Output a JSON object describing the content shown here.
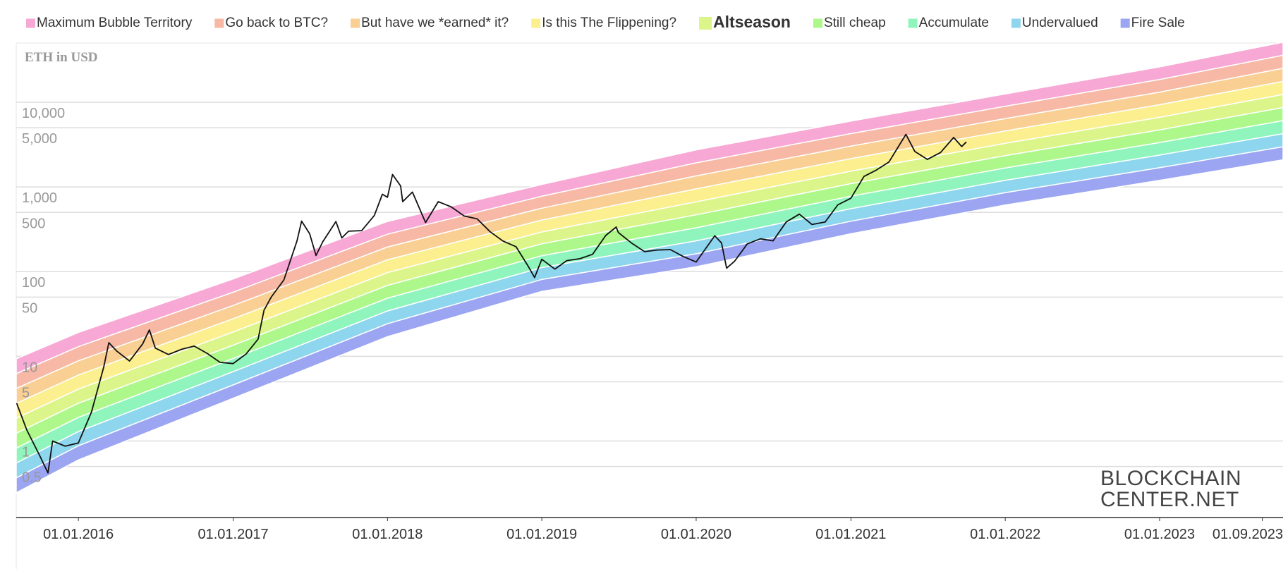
{
  "chart_data": {
    "type": "line",
    "title": "ETH in USD",
    "watermark": [
      "BLOCKCHAIN",
      "CENTER.NET"
    ],
    "log_scale": true,
    "grid": true,
    "legend_position": "top",
    "legend_highlight": 4,
    "ylim": [
      0.125,
      50000
    ],
    "yticks": [
      0.5,
      1,
      5,
      10,
      50,
      100,
      500,
      {
        "value": 1000,
        "label": "1,000"
      },
      {
        "value": 5000,
        "label": "5,000"
      },
      {
        "value": 10000,
        "label": "10,000"
      }
    ],
    "xlim": [
      "2015-08-07",
      "2023-10-20"
    ],
    "xticks": [
      {
        "value": "2016-01-01",
        "label": "01.01.2016"
      },
      {
        "value": "2017-01-01",
        "label": "01.01.2017"
      },
      {
        "value": "2018-01-01",
        "label": "01.01.2018"
      },
      {
        "value": "2019-01-01",
        "label": "01.01.2019"
      },
      {
        "value": "2020-01-01",
        "label": "01.01.2020"
      },
      {
        "value": "2021-01-01",
        "label": "01.01.2021"
      },
      {
        "value": "2022-01-01",
        "label": "01.01.2022"
      },
      {
        "value": "2023-01-01",
        "label": "01.01.2023"
      },
      {
        "value": "2023-09-01",
        "label": "01.09.2023"
      }
    ],
    "bands": {
      "x": [
        "2015-08-07",
        "2016-01-01",
        "2017-01-01",
        "2018-01-01",
        "2019-01-01",
        "2020-01-01",
        "2021-01-01",
        "2022-01-01",
        "2023-01-01",
        "2023-10-20"
      ],
      "upper": [
        9.35,
        19.1,
        81.8,
        391,
        1070,
        2735,
        5980,
        12500,
        26100,
        51100
      ],
      "lower": [
        0.245,
        0.598,
        3.2,
        17.1,
        58.5,
        114,
        280,
        611,
        1196,
        2090
      ],
      "series": [
        {
          "name": "Maximum Bubble Territory",
          "color": "#f7a8d4"
        },
        {
          "name": "Go back to BTC?",
          "color": "#f7b8a6"
        },
        {
          "name": "But have we *earned* it?",
          "color": "#f9cf93"
        },
        {
          "name": "Is this The Flippening?",
          "color": "#fbef8f"
        },
        {
          "name": "Altseason",
          "color": "#dcf58a"
        },
        {
          "name": "Still cheap",
          "color": "#aef88b"
        },
        {
          "name": "Accumulate",
          "color": "#8ff5bc"
        },
        {
          "name": "Undervalued",
          "color": "#8dd6ed"
        },
        {
          "name": "Fire Sale",
          "color": "#9ba5f1"
        }
      ]
    },
    "price": {
      "color": "#111111",
      "x": [
        "2015-08-08",
        "2015-09-01",
        "2015-10-01",
        "2015-10-21",
        "2015-11-01",
        "2015-12-01",
        "2016-01-01",
        "2016-02-01",
        "2016-03-01",
        "2016-03-13",
        "2016-04-01",
        "2016-05-01",
        "2016-06-01",
        "2016-06-17",
        "2016-07-01",
        "2016-08-01",
        "2016-09-01",
        "2016-10-01",
        "2016-11-01",
        "2016-12-01",
        "2017-01-01",
        "2017-02-01",
        "2017-03-01",
        "2017-03-15",
        "2017-04-01",
        "2017-05-01",
        "2017-06-01",
        "2017-06-12",
        "2017-07-01",
        "2017-07-16",
        "2017-08-01",
        "2017-09-01",
        "2017-09-15",
        "2017-10-01",
        "2017-11-01",
        "2017-12-01",
        "2017-12-20",
        "2018-01-01",
        "2018-01-13",
        "2018-02-01",
        "2018-02-06",
        "2018-03-01",
        "2018-04-01",
        "2018-05-01",
        "2018-06-01",
        "2018-07-01",
        "2018-08-01",
        "2018-09-01",
        "2018-10-01",
        "2018-11-01",
        "2018-12-01",
        "2018-12-15",
        "2019-01-01",
        "2019-02-01",
        "2019-03-01",
        "2019-04-01",
        "2019-05-01",
        "2019-06-01",
        "2019-06-26",
        "2019-07-01",
        "2019-08-01",
        "2019-09-01",
        "2019-10-01",
        "2019-11-01",
        "2019-12-01",
        "2020-01-01",
        "2020-02-14",
        "2020-03-01",
        "2020-03-13",
        "2020-04-01",
        "2020-05-01",
        "2020-06-01",
        "2020-07-01",
        "2020-08-01",
        "2020-09-01",
        "2020-10-01",
        "2020-11-01",
        "2020-12-01",
        "2021-01-01",
        "2021-02-01",
        "2021-03-01",
        "2021-04-01",
        "2021-05-11",
        "2021-06-01",
        "2021-07-01",
        "2021-08-01",
        "2021-09-01",
        "2021-09-20",
        "2021-10-01"
      ],
      "values": [
        2.8,
        1.35,
        0.68,
        0.42,
        1.0,
        0.87,
        0.95,
        2.2,
        7.5,
        14.5,
        11.5,
        8.8,
        14.0,
        20.5,
        12.5,
        10.5,
        12.1,
        13.2,
        10.8,
        8.5,
        8.2,
        10.7,
        16,
        35,
        50,
        80,
        230,
        395,
        280,
        155,
        225,
        390,
        250,
        300,
        305,
        460,
        820,
        755,
        1400,
        1030,
        670,
        870,
        380,
        670,
        580,
        455,
        420,
        295,
        230,
        197,
        113,
        85,
        140,
        107,
        135,
        142,
        160,
        267,
        336,
        290,
        218,
        172,
        180,
        182,
        151,
        130,
        265,
        218,
        110,
        133,
        213,
        244,
        231,
        386,
        477,
        360,
        385,
        615,
        735,
        1330,
        1570,
        1970,
        4170,
        2630,
        2110,
        2550,
        3830,
        3000,
        3400
      ]
    }
  }
}
